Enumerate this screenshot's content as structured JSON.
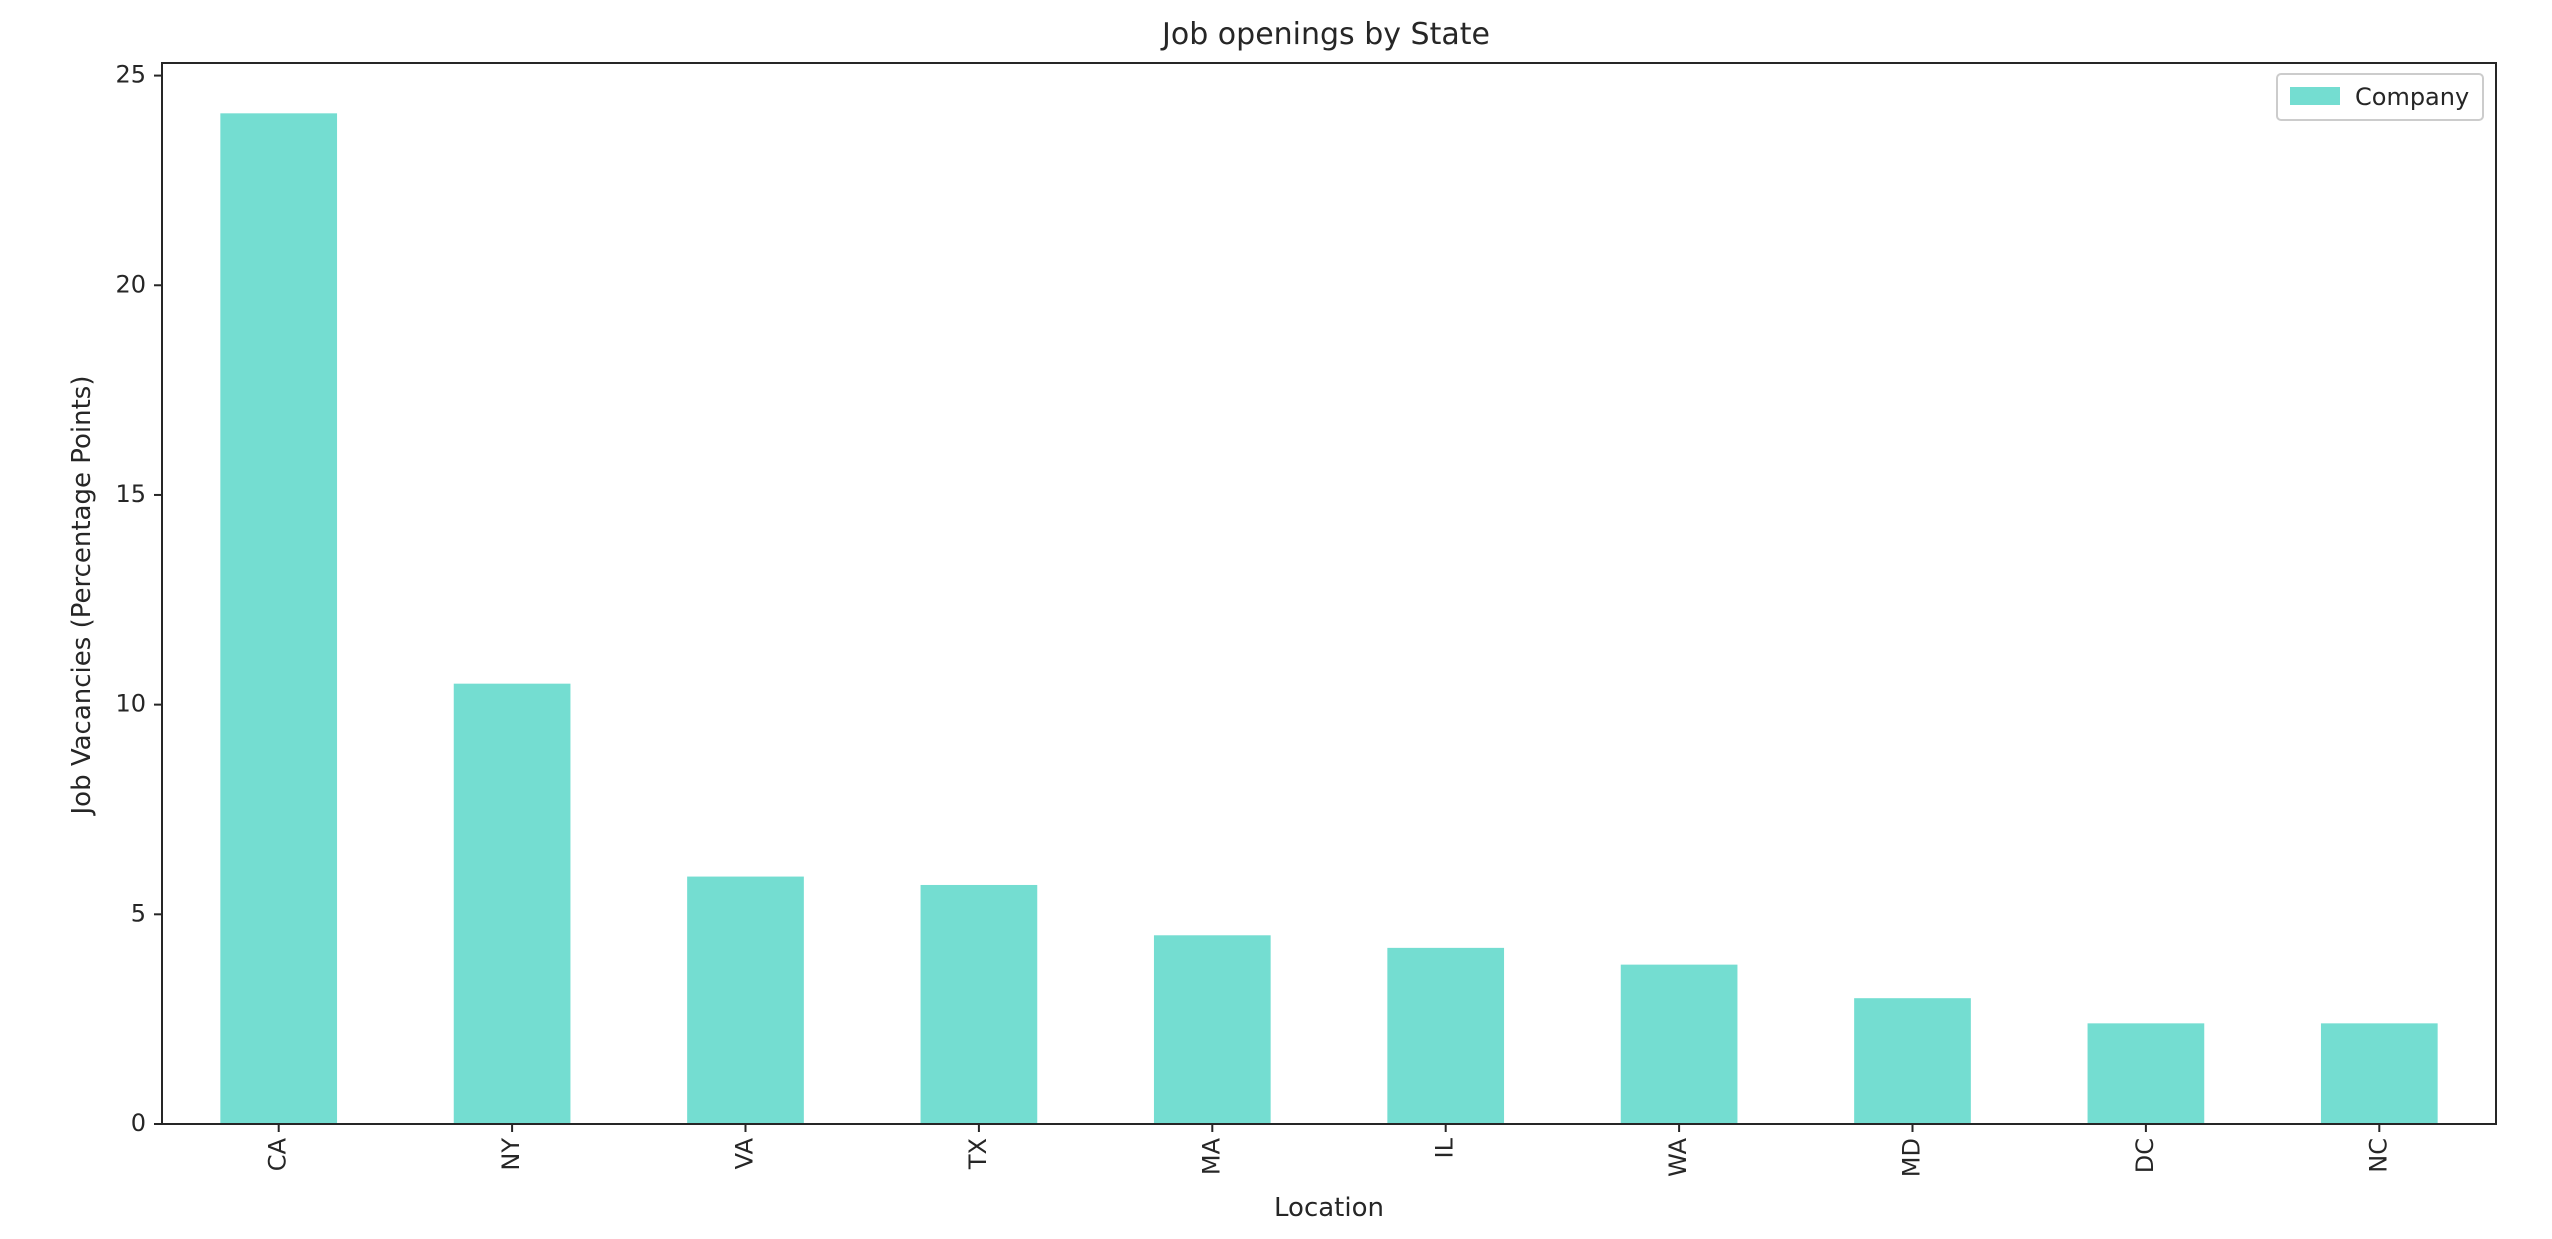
{
  "chart_data": {
    "type": "bar",
    "title": "Job openings by State",
    "xlabel": "Location",
    "ylabel": "Job Vacancies (Percentage Points)",
    "categories": [
      "CA",
      "NY",
      "VA",
      "TX",
      "MA",
      "IL",
      "WA",
      "MD",
      "DC",
      "NC"
    ],
    "series": [
      {
        "name": "Company",
        "values": [
          24.1,
          10.5,
          5.9,
          5.7,
          4.5,
          4.2,
          3.8,
          3.0,
          2.4,
          2.4
        ]
      }
    ],
    "ylim": [
      0,
      25.3
    ],
    "yticks": [
      0,
      5,
      10,
      15,
      20,
      25
    ],
    "grid": false,
    "legend_position": "top-right",
    "colors": {
      "bar": "#74ddd1",
      "axis": "#262626"
    }
  }
}
